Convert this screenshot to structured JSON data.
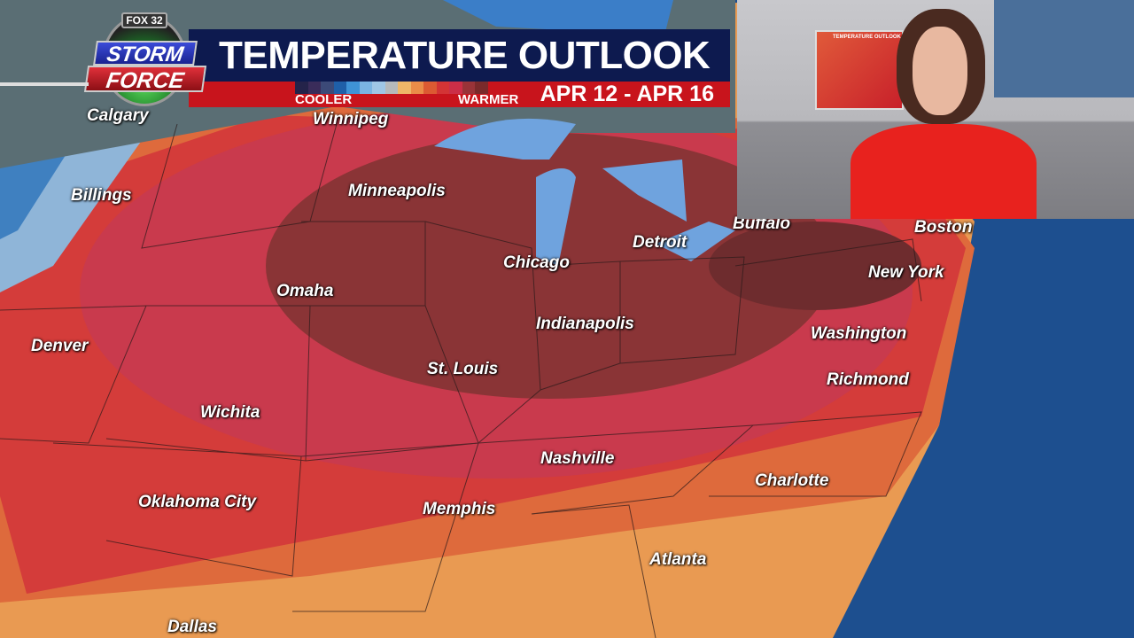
{
  "logo": {
    "station": "FOX 32",
    "line1": "STORM",
    "line2": "FORCE"
  },
  "banner": {
    "title": "TEMPERATURE OUTLOOK",
    "cooler_label": "COOLER",
    "warmer_label": "WARMER",
    "dates": "APR 12 - APR 16",
    "scale_colors": [
      "#24234a",
      "#3a2c5a",
      "#3c4a78",
      "#1f5fa8",
      "#3f93d6",
      "#7bb4e2",
      "#9fc6e6",
      "#b6b9bb",
      "#eeb668",
      "#ea8c48",
      "#dc5a32",
      "#d33435",
      "#cb2e47",
      "#993338",
      "#7a2a2b"
    ]
  },
  "cities": [
    "Calgary",
    "Winnipeg",
    "Billings",
    "Minneapolis",
    "Buffalo",
    "Boston",
    "Detroit",
    "Chicago",
    "New York",
    "Omaha",
    "Denver",
    "Indianapolis",
    "Washington",
    "St. Louis",
    "Richmond",
    "Wichita",
    "Nashville",
    "Charlotte",
    "Oklahoma City",
    "Memphis",
    "Atlanta",
    "Dallas"
  ],
  "inset": {
    "screen_title": "TEMPERATURE OUTLOOK"
  }
}
